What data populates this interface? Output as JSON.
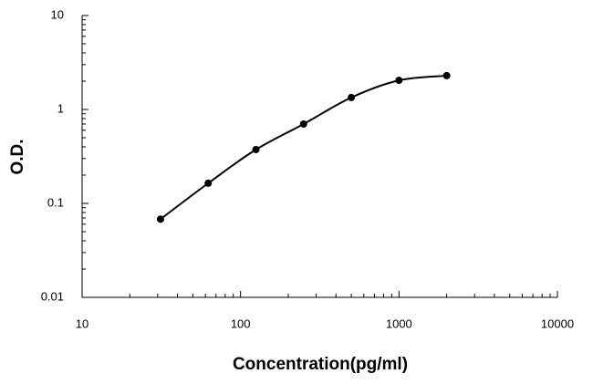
{
  "chart_data": {
    "type": "scatter",
    "x_label": "Concentration(pg/ml)",
    "y_label": "O.D.",
    "x_log": true,
    "y_log": true,
    "xlim": [
      10,
      10000
    ],
    "ylim": [
      0.01,
      10
    ],
    "xticks": [
      10,
      100,
      1000,
      10000
    ],
    "yticks": [
      0.01,
      0.1,
      1,
      10
    ],
    "grid": false,
    "color": "#000000",
    "x": [
      31.25,
      62.5,
      125,
      250,
      500,
      1000,
      2000
    ],
    "values": [
      0.068,
      0.164,
      0.374,
      0.7,
      1.34,
      2.04,
      2.29
    ]
  }
}
